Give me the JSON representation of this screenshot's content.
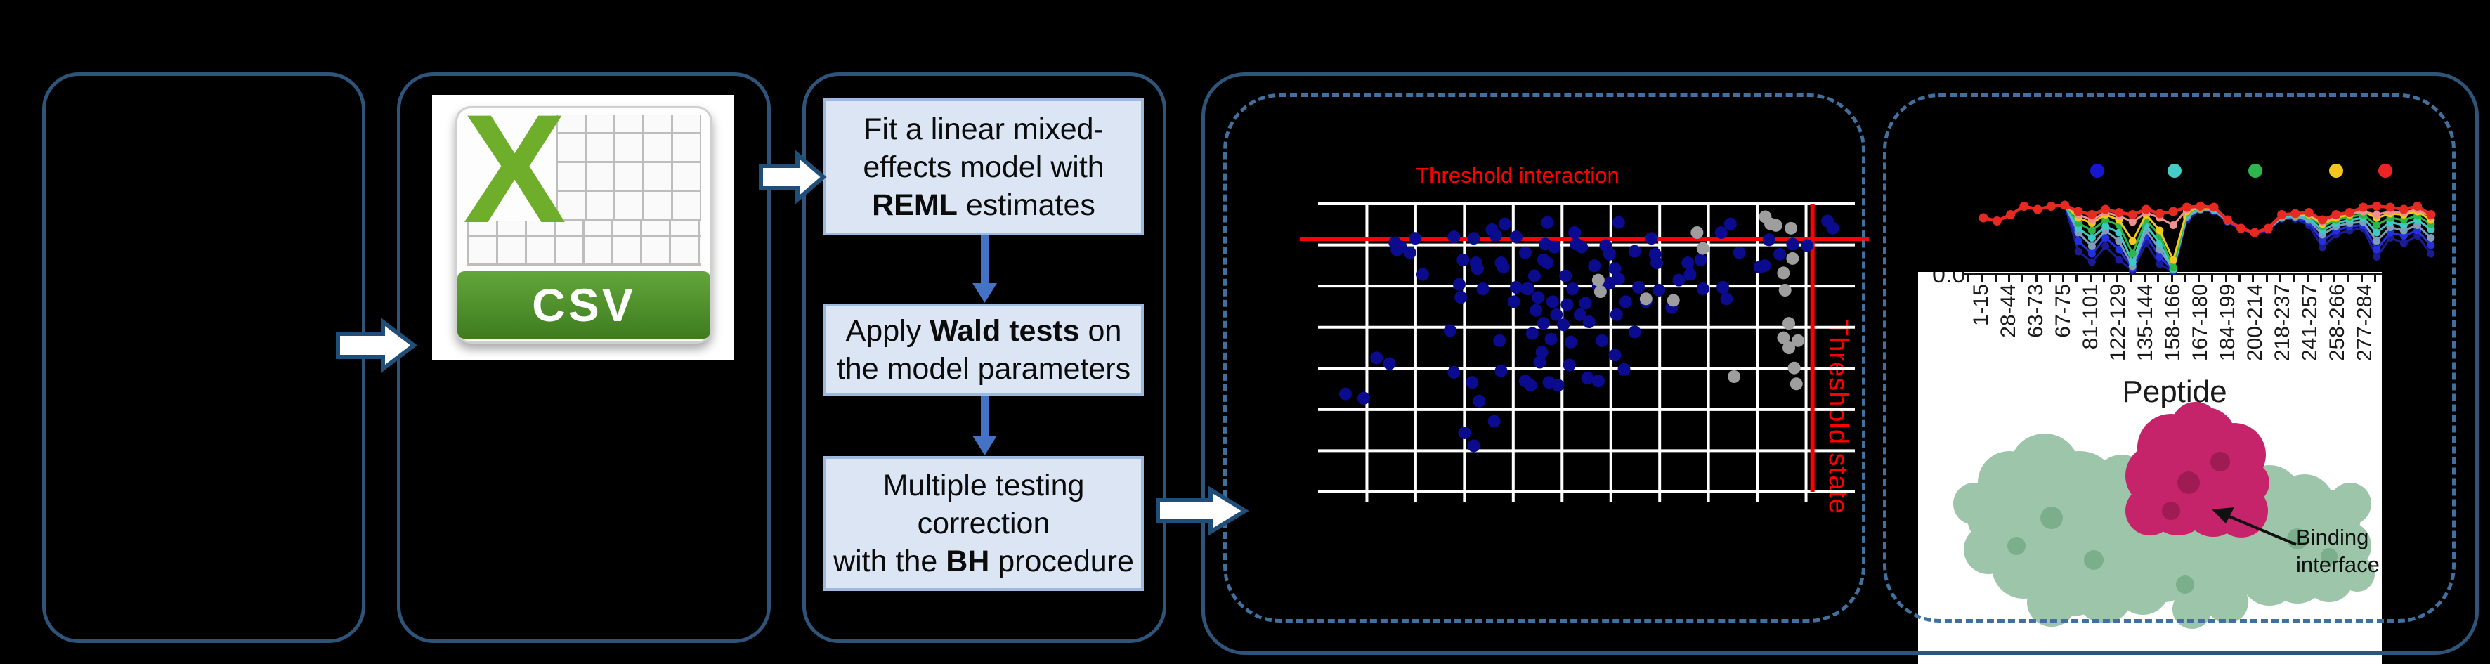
{
  "csv_icon": {
    "sheet_letter": "X",
    "banner_label": "CSV",
    "x_color": "#6FAE2B",
    "banner_green_top": "#63A63B",
    "banner_green_bottom": "#3E7C1F"
  },
  "workflow": {
    "box_fill": "#DBE5F3",
    "box_border": "#9DB9DE",
    "connector_color": "#4472C4",
    "boxes": [
      {
        "lines": [
          [
            {
              "t": "Fit a linear mixed-"
            }
          ],
          [
            {
              "t": "effects model with"
            }
          ],
          [
            {
              "t": "REML",
              "b": true
            },
            {
              "t": " estimates"
            }
          ]
        ]
      },
      {
        "lines": [
          [
            {
              "t": "Apply "
            },
            {
              "t": "Wald tests",
              "b": true
            },
            {
              "t": " on"
            }
          ],
          [
            {
              "t": "the model parameters"
            }
          ]
        ]
      },
      {
        "lines": [
          [
            {
              "t": "Multiple testing"
            }
          ],
          [
            {
              "t": "correction"
            }
          ],
          [
            {
              "t": "with the "
            },
            {
              "t": "BH",
              "b": true
            },
            {
              "t": " procedure"
            }
          ]
        ]
      }
    ]
  },
  "protein": {
    "label_line1": "Binding",
    "label_line2": "interface",
    "green": "#9CC5A9",
    "green_dark": "#7BAF8C",
    "pink": "#C5246A",
    "pink_dark": "#9E1B53"
  },
  "chart_data": [
    {
      "type": "scatter",
      "title": "Threshold interaction",
      "vline_label": "Threshold state",
      "threshold_color": "#FF0000",
      "grid": {
        "cols": 11,
        "rows": 7,
        "color": "#FFFFFF"
      },
      "red_hline_pct_y": 12.2,
      "red_vline_pct_x": 92.1,
      "series": [
        {
          "name": "significant-points",
          "color": "#0B0B8F",
          "points_pct": [
            [
              34.8,
              7
            ],
            [
              42.7,
              6.5
            ],
            [
              56,
              6.5
            ],
            [
              76.8,
              7
            ],
            [
              94.9,
              6
            ],
            [
              95.9,
              8.5
            ],
            [
              32.4,
              9
            ],
            [
              47.8,
              10
            ],
            [
              75.1,
              10
            ],
            [
              62.1,
              12
            ],
            [
              14.3,
              13.5
            ],
            [
              15.4,
              15
            ],
            [
              14.7,
              16
            ],
            [
              17.1,
              17
            ],
            [
              18.1,
              12
            ],
            [
              25.3,
              11.5
            ],
            [
              29,
              12
            ],
            [
              33.1,
              11
            ],
            [
              36.9,
              11.5
            ],
            [
              42.3,
              14
            ],
            [
              44,
              15
            ],
            [
              48.1,
              14
            ],
            [
              49.1,
              15
            ],
            [
              53.6,
              14.5
            ],
            [
              54.3,
              17.5
            ],
            [
              59,
              16.5
            ],
            [
              62.8,
              17.5
            ],
            [
              38.6,
              17
            ],
            [
              78.5,
              17
            ],
            [
              88.4,
              14
            ],
            [
              91.1,
              14.5
            ],
            [
              84,
              12.5
            ],
            [
              86,
              17.5
            ],
            [
              19.5,
              24.5
            ],
            [
              27,
              19.5
            ],
            [
              29.4,
              20.5
            ],
            [
              29.7,
              22.5
            ],
            [
              34.1,
              20.5
            ],
            [
              34.5,
              22
            ],
            [
              42,
              19.5
            ],
            [
              42.7,
              20.5
            ],
            [
              40.3,
              25
            ],
            [
              46.1,
              25
            ],
            [
              51.5,
              21.5
            ],
            [
              55.3,
              22.5
            ],
            [
              63.1,
              20.5
            ],
            [
              68.9,
              20.5
            ],
            [
              71.3,
              19.5
            ],
            [
              82.3,
              22
            ],
            [
              83.2,
              21.5
            ],
            [
              56,
              26
            ],
            [
              67.2,
              26.5
            ],
            [
              26.3,
              28
            ],
            [
              26.6,
              32.5
            ],
            [
              30.7,
              29.5
            ],
            [
              39.2,
              29.5
            ],
            [
              47.4,
              29.5
            ],
            [
              54.3,
              27.5
            ],
            [
              36.9,
              29
            ],
            [
              38.9,
              29.5
            ],
            [
              52.2,
              28.5
            ],
            [
              69.3,
              24.5
            ],
            [
              76.1,
              33
            ],
            [
              63.5,
              30
            ],
            [
              59.7,
              29
            ],
            [
              71.7,
              29.5
            ],
            [
              75.4,
              29
            ],
            [
              41,
              32.5
            ],
            [
              36.5,
              34
            ],
            [
              43.7,
              34
            ],
            [
              40.6,
              37
            ],
            [
              46.4,
              35
            ],
            [
              49.8,
              34.5
            ],
            [
              44.4,
              38.5
            ],
            [
              48.8,
              38.5
            ],
            [
              42,
              41.5
            ],
            [
              45.7,
              42
            ],
            [
              50.5,
              41
            ],
            [
              55.6,
              38.5
            ],
            [
              57.3,
              34
            ],
            [
              61.1,
              34
            ],
            [
              65.9,
              36
            ],
            [
              24.6,
              44
            ],
            [
              10.9,
              53.5
            ],
            [
              13.3,
              55.5
            ],
            [
              5.1,
              66
            ],
            [
              8.5,
              67.5
            ],
            [
              25.3,
              58.5
            ],
            [
              28.7,
              62
            ],
            [
              30,
              68.5
            ],
            [
              32.8,
              75.5
            ],
            [
              27.3,
              79.5
            ],
            [
              29,
              84
            ],
            [
              34.1,
              58
            ],
            [
              38.6,
              61.5
            ],
            [
              39.6,
              63
            ],
            [
              43,
              62
            ],
            [
              44.7,
              63
            ],
            [
              41.3,
              55
            ],
            [
              46.8,
              56
            ],
            [
              33.8,
              47.5
            ],
            [
              39.9,
              45
            ],
            [
              43.4,
              47
            ],
            [
              47.1,
              48
            ],
            [
              52.9,
              47.5
            ],
            [
              55.3,
              52.5
            ],
            [
              59,
              44.5
            ],
            [
              57,
              57.5
            ],
            [
              50.2,
              60.5
            ],
            [
              52.2,
              61.5
            ],
            [
              41.7,
              51.5
            ]
          ]
        },
        {
          "name": "nonsignificant-points",
          "color": "#9E9E9E",
          "points_pct": [
            [
              83.3,
              4.5
            ],
            [
              84.3,
              7
            ],
            [
              85.3,
              7.5
            ],
            [
              70.6,
              10
            ],
            [
              71.7,
              15.5
            ],
            [
              88.1,
              8.5
            ],
            [
              88.4,
              19
            ],
            [
              86.7,
              24
            ],
            [
              52.2,
              26.5
            ],
            [
              52.6,
              30.5
            ],
            [
              61.1,
              33
            ],
            [
              66.2,
              33.5
            ],
            [
              87,
              30
            ],
            [
              87.7,
              41.5
            ],
            [
              89.4,
              47.5
            ],
            [
              86.7,
              46.5
            ],
            [
              87.7,
              50
            ],
            [
              77.5,
              60
            ],
            [
              88.7,
              57
            ],
            [
              89.1,
              62.5
            ]
          ]
        }
      ]
    },
    {
      "type": "line",
      "xlabel": "Peptide",
      "y_tick_label": "0.0",
      "ylim": [
        0,
        0.7
      ],
      "categories": [
        "1-15",
        "28-44",
        "63-73",
        "67-75",
        "81-101",
        "122-129",
        "135-144",
        "158-166",
        "167-180",
        "184-199",
        "200-214",
        "218-237",
        "241-257",
        "258-266",
        "277-284"
      ],
      "legend_colors": [
        "#1717CF",
        "#46CDC8",
        "#2EB54C",
        "#F4C51C",
        "#EC2424"
      ],
      "series": [
        {
          "name": "navy",
          "color": "#1B1B96",
          "values": [
            0.52,
            0.49,
            0.55,
            0.63,
            0.6,
            0.63,
            0.64,
            0.2,
            0.1,
            0.25,
            0.12,
            0.02,
            0.28,
            0.08,
            0.01,
            0.5,
            0.59,
            0.58,
            0.48,
            0.41,
            0.37,
            0.4,
            0.51,
            0.51,
            0.45,
            0.24,
            0.36,
            0.4,
            0.42,
            0.15,
            0.33,
            0.28,
            0.35,
            0.18
          ]
        },
        {
          "name": "blue",
          "color": "#2230E0",
          "values": [
            0.52,
            0.49,
            0.55,
            0.63,
            0.6,
            0.63,
            0.64,
            0.3,
            0.18,
            0.33,
            0.22,
            0.04,
            0.35,
            0.15,
            0.02,
            0.52,
            0.6,
            0.59,
            0.49,
            0.41,
            0.38,
            0.41,
            0.52,
            0.52,
            0.48,
            0.3,
            0.4,
            0.44,
            0.45,
            0.22,
            0.38,
            0.35,
            0.4,
            0.26
          ]
        },
        {
          "name": "steel-blue",
          "color": "#7F9DB9",
          "values": [
            0.52,
            0.49,
            0.55,
            0.63,
            0.6,
            0.63,
            0.64,
            0.38,
            0.25,
            0.4,
            0.3,
            0.06,
            0.4,
            0.22,
            0.03,
            0.53,
            0.6,
            0.59,
            0.49,
            0.42,
            0.38,
            0.41,
            0.52,
            0.53,
            0.5,
            0.36,
            0.44,
            0.47,
            0.48,
            0.3,
            0.43,
            0.4,
            0.45,
            0.33
          ]
        },
        {
          "name": "cyan",
          "color": "#3FC9C4",
          "values": [
            0.52,
            0.49,
            0.55,
            0.63,
            0.6,
            0.63,
            0.64,
            0.42,
            0.33,
            0.44,
            0.38,
            0.1,
            0.45,
            0.28,
            0.03,
            0.55,
            0.61,
            0.6,
            0.5,
            0.42,
            0.38,
            0.42,
            0.53,
            0.54,
            0.52,
            0.4,
            0.47,
            0.5,
            0.52,
            0.38,
            0.48,
            0.45,
            0.5,
            0.41
          ]
        },
        {
          "name": "green",
          "color": "#2DB64B",
          "values": [
            0.52,
            0.49,
            0.55,
            0.63,
            0.6,
            0.63,
            0.64,
            0.47,
            0.4,
            0.5,
            0.45,
            0.18,
            0.5,
            0.35,
            0.05,
            0.57,
            0.62,
            0.61,
            0.5,
            0.42,
            0.38,
            0.42,
            0.54,
            0.55,
            0.54,
            0.44,
            0.5,
            0.53,
            0.55,
            0.45,
            0.52,
            0.5,
            0.54,
            0.46
          ]
        },
        {
          "name": "yellow",
          "color": "#F3C71B",
          "values": [
            0.52,
            0.49,
            0.55,
            0.63,
            0.6,
            0.63,
            0.64,
            0.52,
            0.47,
            0.55,
            0.5,
            0.3,
            0.55,
            0.4,
            0.12,
            0.58,
            0.62,
            0.61,
            0.5,
            0.42,
            0.38,
            0.42,
            0.55,
            0.55,
            0.55,
            0.46,
            0.52,
            0.55,
            0.58,
            0.52,
            0.56,
            0.55,
            0.58,
            0.5
          ]
        },
        {
          "name": "salmon",
          "color": "#F09090",
          "values": [
            0.52,
            0.49,
            0.55,
            0.63,
            0.6,
            0.63,
            0.64,
            0.55,
            0.5,
            0.57,
            0.54,
            0.48,
            0.57,
            0.52,
            0.45,
            0.6,
            0.63,
            0.62,
            0.5,
            0.42,
            0.38,
            0.42,
            0.55,
            0.56,
            0.56,
            0.48,
            0.54,
            0.56,
            0.58,
            0.55,
            0.58,
            0.57,
            0.6,
            0.53
          ]
        },
        {
          "name": "red",
          "color": "#E62A22",
          "values": [
            0.52,
            0.49,
            0.55,
            0.63,
            0.6,
            0.63,
            0.64,
            0.58,
            0.55,
            0.6,
            0.57,
            0.55,
            0.6,
            0.56,
            0.58,
            0.62,
            0.63,
            0.62,
            0.5,
            0.42,
            0.38,
            0.42,
            0.55,
            0.56,
            0.57,
            0.5,
            0.55,
            0.57,
            0.62,
            0.63,
            0.62,
            0.6,
            0.63,
            0.55
          ]
        }
      ]
    }
  ]
}
